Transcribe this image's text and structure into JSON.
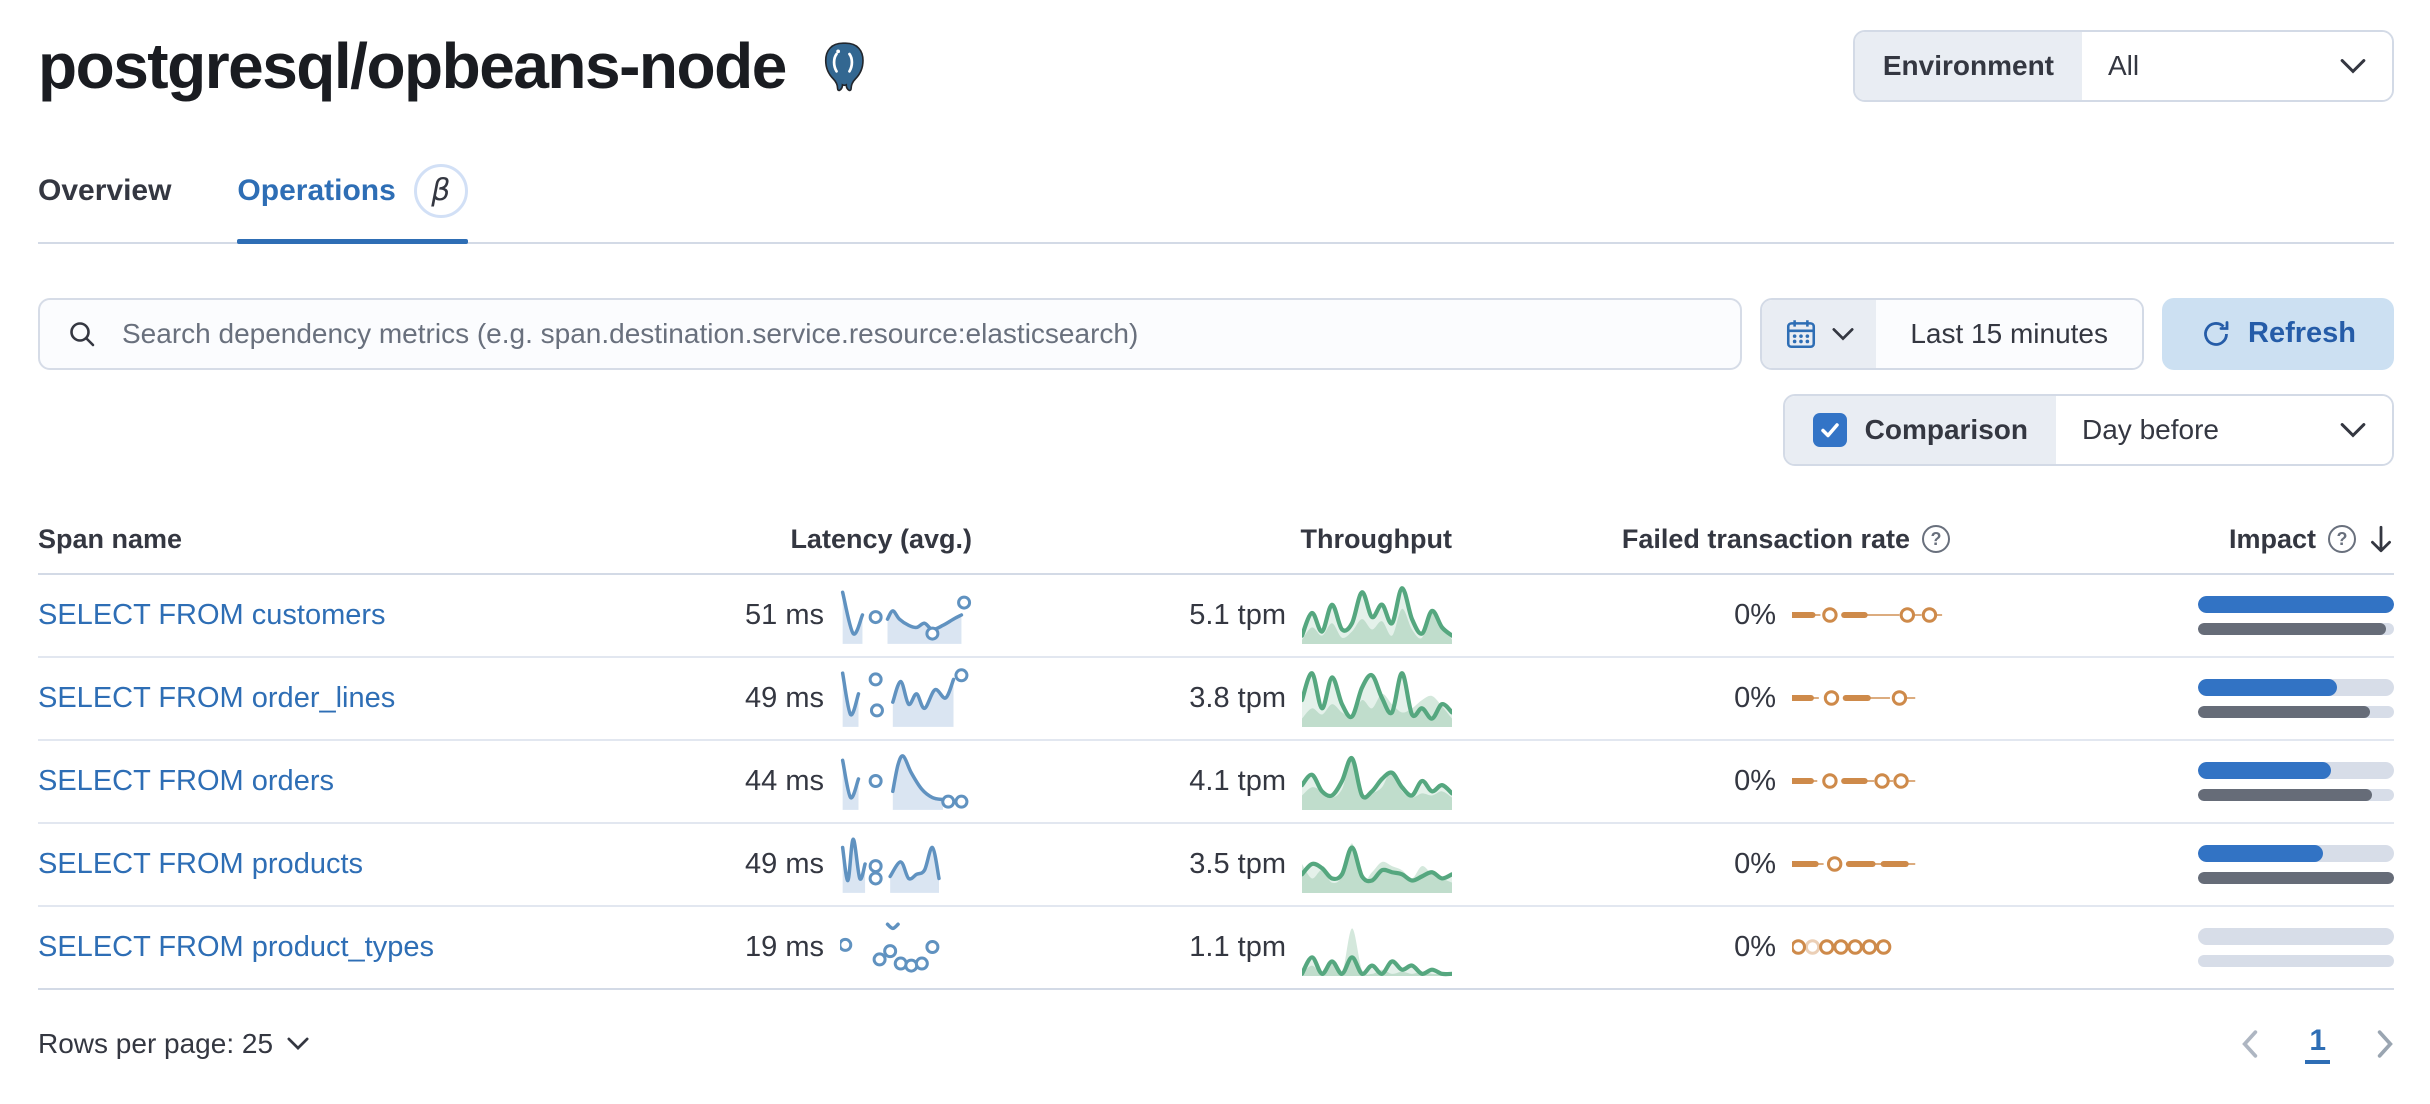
{
  "page": {
    "title": "postgresql/opbeans-node"
  },
  "environment": {
    "label": "Environment",
    "value": "All"
  },
  "tabs": [
    {
      "label": "Overview"
    },
    {
      "label": "Operations",
      "beta": "β"
    }
  ],
  "toolbar": {
    "search_placeholder": "Search dependency metrics (e.g. span.destination.service.resource:elasticsearch)",
    "time_range": "Last 15 minutes",
    "refresh_label": "Refresh"
  },
  "comparison": {
    "label": "Comparison",
    "value": "Day before",
    "checked": true
  },
  "table": {
    "columns": {
      "span_name": "Span name",
      "latency": "Latency (avg.)",
      "throughput": "Throughput",
      "failed_rate": "Failed transaction rate",
      "impact": "Impact"
    },
    "rows": [
      {
        "name": "SELECT FROM customers",
        "latency": "51 ms",
        "throughput": "5.1 tpm",
        "failed_rate": "0%",
        "impact_current_pct": 100,
        "impact_previous_pct": 96,
        "sparks": {
          "latency": {
            "segments": [
              {
                "pts": [
                  [
                    2,
                    8
                  ],
                  [
                    10,
                    48
                  ],
                  [
                    17,
                    30
                  ]
                ],
                "area": true
              },
              {
                "pts": [
                  [
                    36,
                    34
                  ],
                  [
                    40,
                    26
                  ],
                  [
                    45,
                    34
                  ],
                  [
                    52,
                    40
                  ],
                  [
                    58,
                    42
                  ],
                  [
                    64,
                    38
                  ],
                  [
                    70,
                    44
                  ],
                  [
                    78,
                    40
                  ],
                  [
                    86,
                    34
                  ],
                  [
                    92,
                    30
                  ]
                ],
                "area": true
              }
            ],
            "dots": [
              [
                27,
                32
              ],
              [
                70,
                48
              ],
              [
                94,
                18
              ]
            ]
          },
          "throughput": {
            "line": [
              52,
              30,
              48,
              22,
              46,
              40,
              10,
              34,
              22,
              40,
              6,
              36,
              50,
              28,
              44,
              52
            ],
            "area": [
              56,
              44,
              52,
              40,
              54,
              48,
              36,
              46,
              38,
              52,
              26,
              46,
              54,
              28,
              42,
              56
            ]
          },
          "failed": [
            {
              "t": "th",
              "a": 0,
              "b": 13
            },
            {
              "t": "tn",
              "a": 13,
              "b": 18
            },
            {
              "t": "o",
              "x": 24
            },
            {
              "t": "th",
              "a": 33,
              "b": 46
            },
            {
              "t": "tn",
              "a": 46,
              "b": 68
            },
            {
              "t": "o",
              "x": 73
            },
            {
              "t": "tn",
              "a": 77,
              "b": 82
            },
            {
              "t": "o",
              "x": 87
            },
            {
              "t": "tn",
              "a": 91,
              "b": 95
            }
          ]
        }
      },
      {
        "name": "SELECT FROM order_lines",
        "latency": "49 ms",
        "throughput": "3.8 tpm",
        "failed_rate": "0%",
        "impact_current_pct": 71,
        "impact_previous_pct": 88,
        "sparks": {
          "latency": {
            "segments": [
              {
                "pts": [
                  [
                    2,
                    6
                  ],
                  [
                    8,
                    46
                  ],
                  [
                    14,
                    26
                  ]
                ],
                "area": true
              },
              {
                "pts": [
                  [
                    40,
                    34
                  ],
                  [
                    46,
                    14
                  ],
                  [
                    52,
                    36
                  ],
                  [
                    58,
                    26
                  ],
                  [
                    64,
                    40
                  ],
                  [
                    72,
                    22
                  ],
                  [
                    80,
                    30
                  ],
                  [
                    86,
                    12
                  ]
                ],
                "area": true
              }
            ],
            "dots": [
              [
                27,
                12
              ],
              [
                28,
                42
              ],
              [
                92,
                8
              ]
            ]
          },
          "throughput": {
            "line": [
              34,
              8,
              42,
              12,
              38,
              50,
              22,
              10,
              32,
              46,
              8,
              48,
              42,
              52,
              38,
              46
            ],
            "area": [
              52,
              42,
              48,
              38,
              46,
              50,
              34,
              42,
              28,
              38,
              46,
              42,
              34,
              30,
              40,
              52
            ]
          },
          "failed": [
            {
              "t": "th",
              "a": 0,
              "b": 12
            },
            {
              "t": "tn",
              "a": 12,
              "b": 17
            },
            {
              "t": "o",
              "x": 25
            },
            {
              "t": "th",
              "a": 34,
              "b": 48
            },
            {
              "t": "tn",
              "a": 48,
              "b": 62
            },
            {
              "t": "o",
              "x": 68
            },
            {
              "t": "tn",
              "a": 72,
              "b": 78
            }
          ]
        }
      },
      {
        "name": "SELECT FROM orders",
        "latency": "44 ms",
        "throughput": "4.1 tpm",
        "failed_rate": "0%",
        "impact_current_pct": 68,
        "impact_previous_pct": 89,
        "sparks": {
          "latency": {
            "segments": [
              {
                "pts": [
                  [
                    2,
                    10
                  ],
                  [
                    8,
                    46
                  ],
                  [
                    14,
                    28
                  ]
                ],
                "area": true
              },
              {
                "pts": [
                  [
                    40,
                    40
                  ],
                  [
                    44,
                    14
                  ],
                  [
                    48,
                    6
                  ],
                  [
                    54,
                    22
                  ],
                  [
                    62,
                    38
                  ],
                  [
                    70,
                    46
                  ],
                  [
                    78,
                    48
                  ]
                ],
                "area": true
              }
            ],
            "dots": [
              [
                27,
                30
              ],
              [
                82,
                50
              ],
              [
                92,
                50
              ]
            ]
          },
          "throughput": {
            "line": [
              36,
              26,
              42,
              46,
              32,
              10,
              46,
              42,
              30,
              24,
              38,
              46,
              32,
              42,
              36,
              44
            ],
            "area": [
              46,
              38,
              42,
              48,
              40,
              12,
              48,
              44,
              38,
              22,
              42,
              48,
              44,
              46,
              42,
              48
            ]
          },
          "failed": [
            {
              "t": "th",
              "a": 0,
              "b": 12
            },
            {
              "t": "tn",
              "a": 12,
              "b": 16
            },
            {
              "t": "o",
              "x": 24
            },
            {
              "t": "th",
              "a": 33,
              "b": 46
            },
            {
              "t": "tn",
              "a": 46,
              "b": 52
            },
            {
              "t": "o",
              "x": 57
            },
            {
              "t": "tn",
              "a": 61,
              "b": 64
            },
            {
              "t": "o",
              "x": 69
            },
            {
              "t": "tn",
              "a": 73,
              "b": 78
            }
          ]
        }
      },
      {
        "name": "SELECT FROM products",
        "latency": "49 ms",
        "throughput": "3.5 tpm",
        "failed_rate": "0%",
        "impact_current_pct": 64,
        "impact_previous_pct": 100,
        "sparks": {
          "latency": {
            "segments": [
              {
                "pts": [
                  [
                    2,
                    14
                  ],
                  [
                    6,
                    46
                  ],
                  [
                    10,
                    6
                  ],
                  [
                    15,
                    44
                  ],
                  [
                    19,
                    30
                  ]
                ],
                "area": true
              },
              {
                "pts": [
                  [
                    38,
                    42
                  ],
                  [
                    46,
                    28
                  ],
                  [
                    52,
                    44
                  ],
                  [
                    58,
                    40
                  ],
                  [
                    64,
                    36
                  ],
                  [
                    70,
                    14
                  ],
                  [
                    75,
                    44
                  ]
                ],
                "area": true
              }
            ],
            "dots": [
              [
                27,
                32
              ],
              [
                27,
                44
              ]
            ]
          },
          "throughput": {
            "line": [
              42,
              32,
              36,
              46,
              42,
              16,
              44,
              48,
              38,
              40,
              42,
              48,
              44,
              40,
              46,
              42
            ],
            "area": [
              32,
              46,
              38,
              50,
              44,
              12,
              48,
              40,
              30,
              34,
              38,
              46,
              34,
              42,
              46,
              50
            ]
          },
          "failed": [
            {
              "t": "th",
              "a": 0,
              "b": 15
            },
            {
              "t": "tn",
              "a": 15,
              "b": 20
            },
            {
              "t": "o",
              "x": 27
            },
            {
              "t": "th",
              "a": 36,
              "b": 51
            },
            {
              "t": "tn",
              "a": 51,
              "b": 58
            },
            {
              "t": "th",
              "a": 58,
              "b": 72
            },
            {
              "t": "tn",
              "a": 72,
              "b": 78
            }
          ]
        }
      },
      {
        "name": "SELECT FROM product_types",
        "latency": "19 ms",
        "throughput": "1.1 tpm",
        "failed_rate": "0%",
        "impact_current_pct": 0,
        "impact_previous_pct": 0,
        "sparks": {
          "latency": {
            "segments": [
              {
                "pts": [
                  [
                    36,
                    8
                  ],
                  [
                    40,
                    12
                  ],
                  [
                    44,
                    8
                  ]
                ],
                "area": false
              }
            ],
            "dots": [
              [
                4,
                28
              ],
              [
                30,
                42
              ],
              [
                38,
                34
              ],
              [
                46,
                46
              ],
              [
                54,
                48
              ],
              [
                62,
                46
              ],
              [
                70,
                30
              ]
            ]
          },
          "throughput": {
            "line": [
              58,
              42,
              58,
              46,
              58,
              42,
              58,
              50,
              58,
              46,
              54,
              50,
              58,
              54,
              58,
              58
            ],
            "area": [
              58,
              50,
              58,
              46,
              58,
              14,
              54,
              58,
              54,
              58,
              56,
              58,
              56,
              58,
              58,
              58
            ]
          },
          "failed": [
            {
              "t": "o",
              "x": 4
            },
            {
              "t": "ol",
              "x": 13
            },
            {
              "t": "o",
              "x": 22
            },
            {
              "t": "o",
              "x": 31
            },
            {
              "t": "o",
              "x": 40
            },
            {
              "t": "o",
              "x": 49
            },
            {
              "t": "o",
              "x": 58
            }
          ]
        }
      }
    ]
  },
  "footer": {
    "rows_per_page": "Rows per page: 25",
    "page": "1"
  },
  "colors": {
    "primary": "#2e6eb5",
    "latency_line": "#6092c0",
    "latency_fill": "#dae5f2",
    "throughput_line": "#55a77f",
    "throughput_fill": "#d4e8dc",
    "failed": "#ce8a4a",
    "impact_current": "#3273c4",
    "impact_previous": "#666c78",
    "bar_track": "#d7dde8"
  }
}
